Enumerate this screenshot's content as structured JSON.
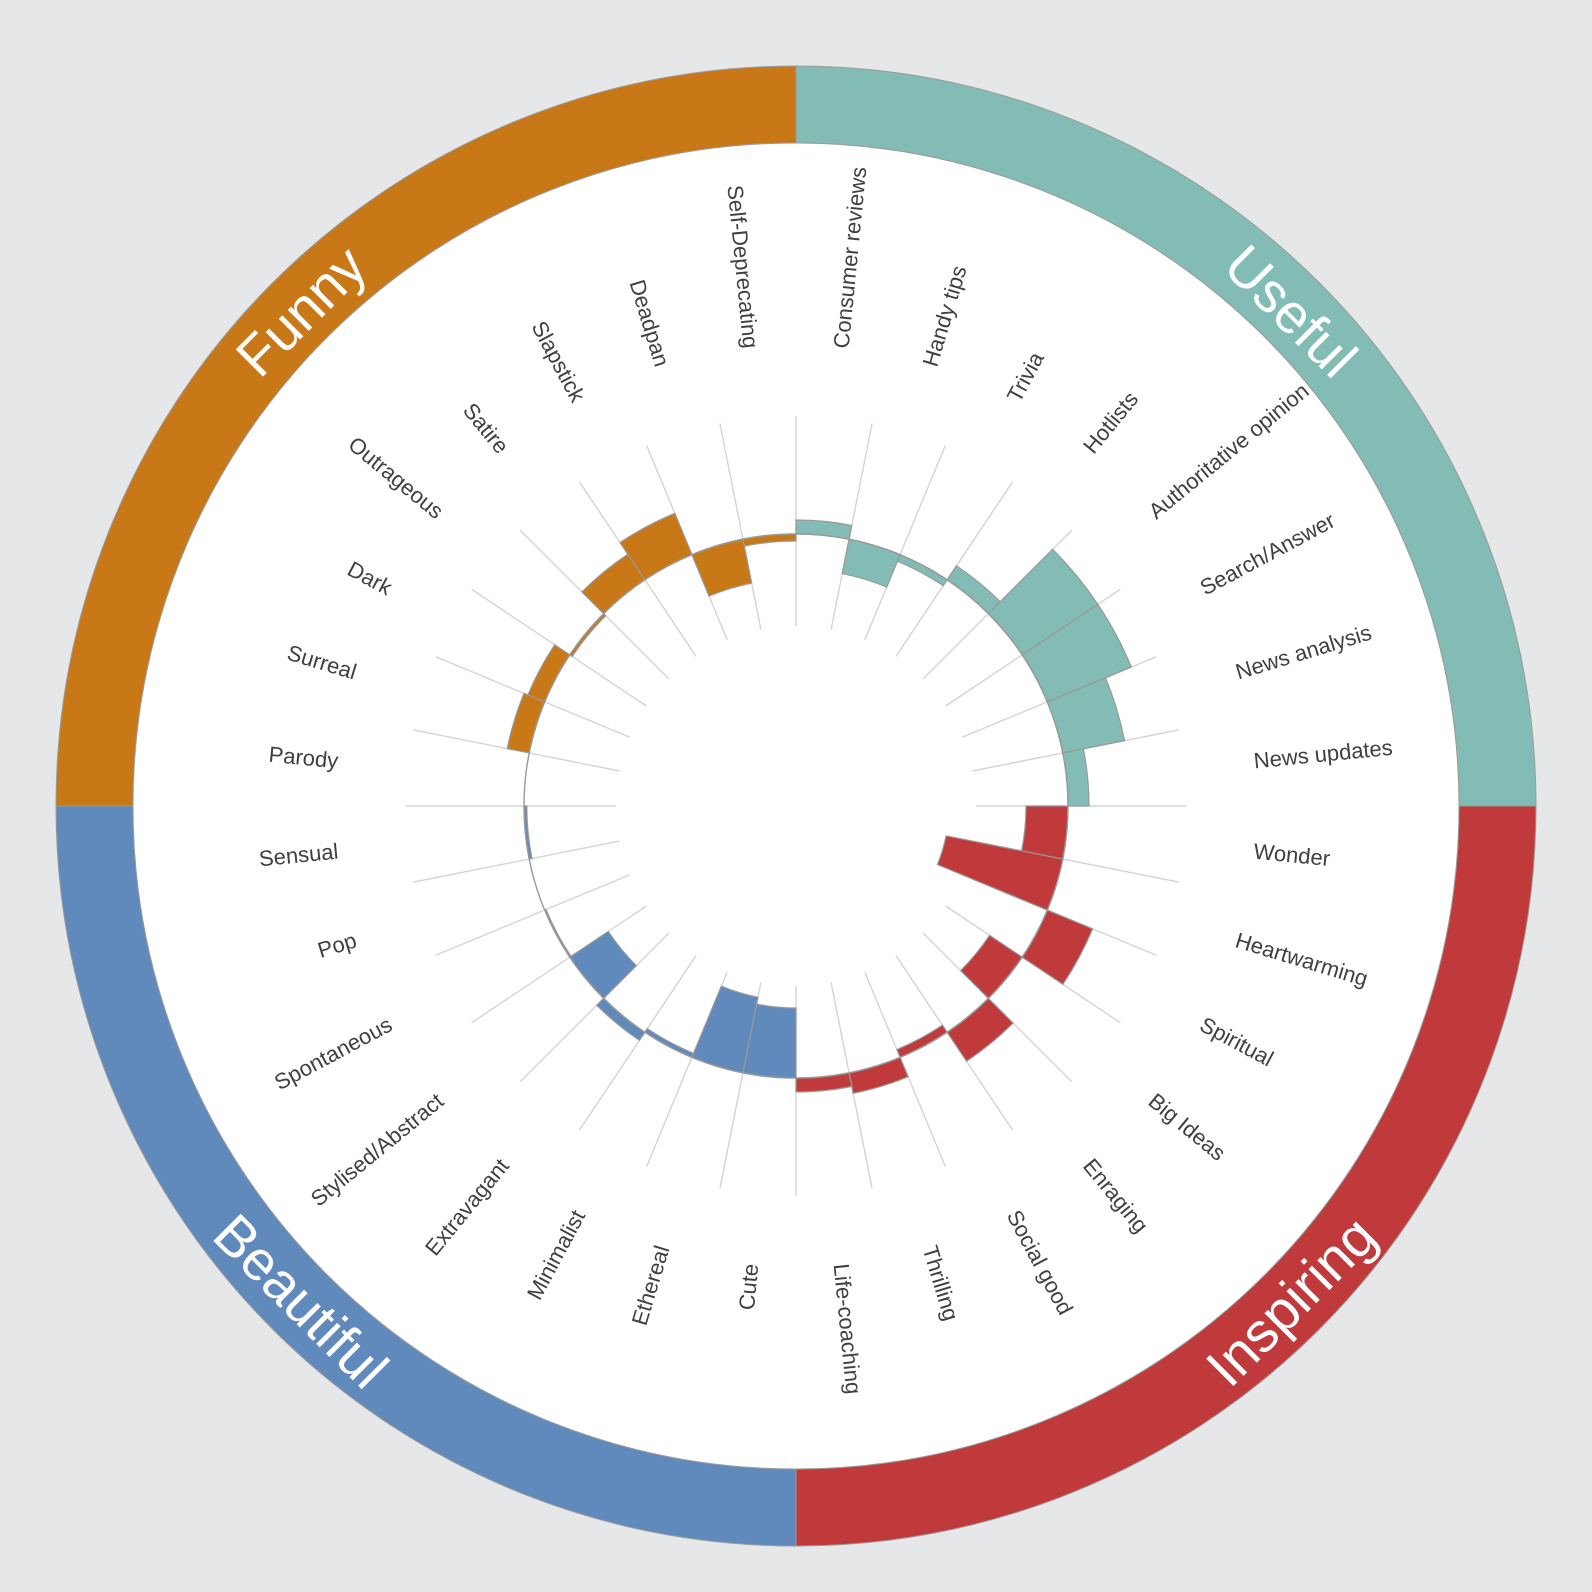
{
  "chart_data": {
    "type": "radial-bar",
    "baseline": 0,
    "ylim": [
      -10,
      20
    ],
    "groups": [
      {
        "name": "Useful",
        "color": "#82bcb4",
        "categories": [
          "Consumer reviews",
          "Handy tips",
          "Trivia",
          "Hotlists",
          "Authoritative opinion",
          "Search/Answer",
          "News analysis",
          "News updates"
        ],
        "values": [
          1,
          -2.5,
          -0.5,
          1.2,
          6.5,
          6.5,
          4.5,
          1.5
        ]
      },
      {
        "name": "Inspiring",
        "color": "#c0393b",
        "categories": [
          "Wonder",
          "Heartwarming",
          "Spiritual",
          "Big Ideas",
          "Enraging",
          "Social good",
          "Thrilling",
          "Life-coaching"
        ],
        "values": [
          -3,
          -8.5,
          3.5,
          -2.8,
          2.5,
          -0.6,
          1.5,
          1
        ]
      },
      {
        "name": "Beautiful",
        "color": "#6089bc",
        "categories": [
          "Cute",
          "Ethereal",
          "Minimalist",
          "Extravagant",
          "Stylised/Abstract",
          "Spontaneous",
          "Pop",
          "Sensual"
        ],
        "values": [
          -5,
          -5.5,
          -0.3,
          0.7,
          -3.3,
          -0.1,
          0,
          -0.2
        ]
      },
      {
        "name": "Funny",
        "color": "#c97817",
        "categories": [
          "Parody",
          "Surreal",
          "Dark",
          "Outrageous",
          "Satire",
          "Slapstick",
          "Deadpan",
          "Self-Deprecating"
        ],
        "values": [
          0,
          1.6,
          1.3,
          -0.2,
          2.2,
          3.2,
          -3.2,
          -0.5
        ]
      }
    ]
  }
}
